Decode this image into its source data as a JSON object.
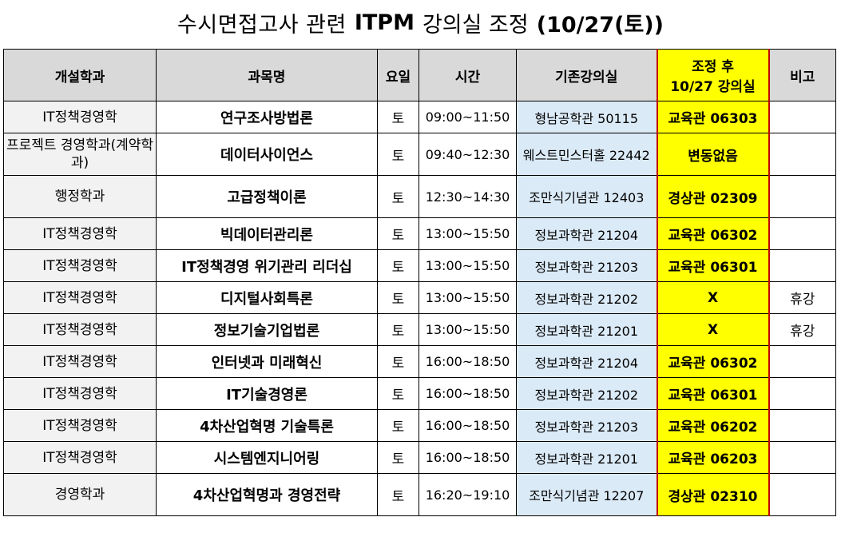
{
  "title": {
    "pre": "수시면접고사 관련",
    "bold": "ITPM",
    "post": "강의실 조정",
    "date": "(10/27(토))"
  },
  "headers": {
    "dept": "개설학과",
    "course": "과목명",
    "day": "요일",
    "time": "시간",
    "room": "기존강의실",
    "new_line1": "조정 후",
    "new_line2": "10/27 강의실",
    "note": "비고"
  },
  "rows": [
    {
      "dept": "IT정책경영학",
      "course": "연구조사방법론",
      "day": "토",
      "time": "09:00~11:50",
      "room": "형남공학관 50115",
      "new": "교육관 06303",
      "note": ""
    },
    {
      "dept": "프로젝트 경영학과(계약학과)",
      "course": "데이터사이언스",
      "day": "토",
      "time": "09:40~12:30",
      "room": "웨스트민스터홀 22442",
      "new": "변동없음",
      "note": ""
    },
    {
      "dept": "행정학과",
      "course": "고급정책이론",
      "day": "토",
      "time": "12:30~14:30",
      "room": "조만식기념관 12403",
      "new": "경상관 02309",
      "note": ""
    },
    {
      "dept": "IT정책경영학",
      "course": "빅데이터관리론",
      "day": "토",
      "time": "13:00~15:50",
      "room": "정보과학관 21204",
      "new": "교육관 06302",
      "note": ""
    },
    {
      "dept": "IT정책경영학",
      "course": "IT정책경영 위기관리 리더십",
      "day": "토",
      "time": "13:00~15:50",
      "room": "정보과학관 21203",
      "new": "교육관 06301",
      "note": ""
    },
    {
      "dept": "IT정책경영학",
      "course": "디지털사회특론",
      "day": "토",
      "time": "13:00~15:50",
      "room": "정보과학관 21202",
      "new": "X",
      "note": "휴강"
    },
    {
      "dept": "IT정책경영학",
      "course": "정보기술기업법론",
      "day": "토",
      "time": "13:00~15:50",
      "room": "정보과학관 21201",
      "new": "X",
      "note": "휴강"
    },
    {
      "dept": "IT정책경영학",
      "course": "인터넷과 미래혁신",
      "day": "토",
      "time": "16:00~18:50",
      "room": "정보과학관 21204",
      "new": "교육관 06302",
      "note": ""
    },
    {
      "dept": "IT정책경영학",
      "course": "IT기술경영론",
      "day": "토",
      "time": "16:00~18:50",
      "room": "정보과학관 21202",
      "new": "교육관 06301",
      "note": ""
    },
    {
      "dept": "IT정책경영학",
      "course": "4차산업혁명 기술특론",
      "day": "토",
      "time": "16:00~18:50",
      "room": "정보과학관 21203",
      "new": "교육관 06202",
      "note": ""
    },
    {
      "dept": "IT정책경영학",
      "course": "시스템엔지니어링",
      "day": "토",
      "time": "16:00~18:50",
      "room": "정보과학관 21201",
      "new": "교육관 06203",
      "note": ""
    },
    {
      "dept": "경영학과",
      "course": "4차산업혁명과 경영전략",
      "day": "토",
      "time": "16:20~19:10",
      "room": "조만식기념관 12207",
      "new": "경상관 02310",
      "note": ""
    }
  ],
  "colors": {
    "header_bg": "#d9d9d9",
    "highlight": "#ffff00",
    "room_bg": "#dbeaf7",
    "dept_bg": "#f2f2f2",
    "highlight_border": "#c00000"
  }
}
